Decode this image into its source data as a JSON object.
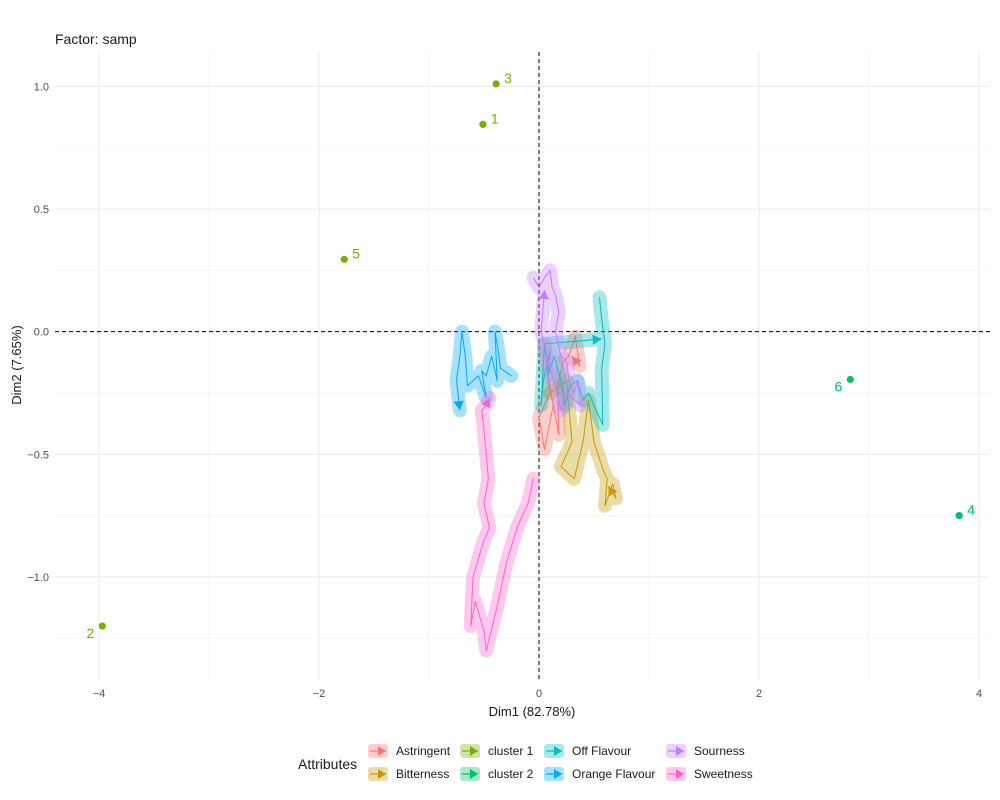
{
  "chart_data": {
    "type": "scatter",
    "title": "Factor: samp",
    "xlabel": "Dim1 (82.78%)",
    "ylabel": "Dim2 (7.65%)",
    "xlim": [
      -4.4,
      4.1
    ],
    "ylim": [
      -1.42,
      1.14
    ],
    "x_ticks": [
      -4,
      -2,
      0,
      2,
      4
    ],
    "y_ticks": [
      1.0,
      0.5,
      0.0,
      -0.5,
      -1.0
    ],
    "x_tick_labels": [
      "−4",
      "−2",
      "0",
      "2",
      "4"
    ],
    "y_tick_labels": [
      "1.0",
      "0.5",
      "0.0",
      "−0.5",
      "−1.0"
    ],
    "reference_lines": {
      "x": 0,
      "y": 0,
      "style": "dashed"
    },
    "grid": true,
    "points": [
      {
        "label": "1",
        "x": -0.51,
        "y": 0.845,
        "group": "cluster 1",
        "label_side": "right"
      },
      {
        "label": "2",
        "x": -3.97,
        "y": -1.2,
        "group": "cluster 1",
        "label_side": "left"
      },
      {
        "label": "3",
        "x": -0.39,
        "y": 1.01,
        "group": "cluster 1",
        "label_side": "right"
      },
      {
        "label": "4",
        "x": 3.82,
        "y": -0.75,
        "group": "cluster 2",
        "label_side": "right"
      },
      {
        "label": "5",
        "x": -1.77,
        "y": 0.295,
        "group": "cluster 1",
        "label_side": "right"
      },
      {
        "label": "6",
        "x": 2.83,
        "y": -0.195,
        "group": "cluster 2",
        "label_side": "left"
      }
    ],
    "trajectories": [
      {
        "name": "Astringent",
        "color": "#F8766D",
        "path": [
          [
            0.05,
            -0.05
          ],
          [
            0.1,
            -0.25
          ],
          [
            0.0,
            -0.35
          ],
          [
            0.05,
            -0.48
          ],
          [
            0.13,
            -0.3
          ],
          [
            0.08,
            -0.18
          ],
          [
            0.18,
            -0.42
          ],
          [
            0.17,
            -0.22
          ],
          [
            0.22,
            -0.12
          ],
          [
            0.27,
            -0.1
          ],
          [
            0.33,
            -0.02
          ],
          [
            0.37,
            -0.14
          ],
          [
            0.3,
            -0.1
          ]
        ]
      },
      {
        "name": "Bitterness",
        "color": "#C49A00",
        "path": [
          [
            0.1,
            -0.25
          ],
          [
            0.25,
            -0.2
          ],
          [
            0.3,
            -0.45
          ],
          [
            0.2,
            -0.55
          ],
          [
            0.32,
            -0.6
          ],
          [
            0.4,
            -0.45
          ],
          [
            0.45,
            -0.28
          ],
          [
            0.5,
            -0.45
          ],
          [
            0.58,
            -0.56
          ],
          [
            0.62,
            -0.6
          ],
          [
            0.6,
            -0.71
          ],
          [
            0.67,
            -0.62
          ],
          [
            0.7,
            -0.68
          ],
          [
            0.63,
            -0.63
          ]
        ]
      },
      {
        "name": "Off Flavour",
        "color": "#00BFC4",
        "path": [
          [
            0.55,
            0.14
          ],
          [
            0.57,
            0.05
          ],
          [
            0.6,
            -0.05
          ],
          [
            0.57,
            -0.15
          ],
          [
            0.58,
            -0.38
          ],
          [
            0.45,
            -0.25
          ],
          [
            0.4,
            -0.28
          ],
          [
            0.35,
            -0.2
          ],
          [
            0.28,
            -0.22
          ],
          [
            0.24,
            -0.3
          ],
          [
            0.2,
            -0.2
          ],
          [
            0.14,
            -0.1
          ],
          [
            0.08,
            -0.18
          ],
          [
            0.1,
            -0.08
          ],
          [
            0.04,
            -0.2
          ],
          [
            0.02,
            -0.3
          ],
          [
            0.05,
            -0.05
          ],
          [
            0.57,
            -0.03
          ]
        ]
      },
      {
        "name": "Orange Flavour",
        "color": "#00A9FF",
        "path": [
          [
            -0.25,
            -0.18
          ],
          [
            -0.35,
            -0.15
          ],
          [
            -0.38,
            -0.05
          ],
          [
            -0.4,
            0.0
          ],
          [
            -0.38,
            -0.2
          ],
          [
            -0.43,
            -0.1
          ],
          [
            -0.48,
            -0.18
          ],
          [
            -0.52,
            -0.16
          ],
          [
            -0.48,
            -0.27
          ],
          [
            -0.55,
            -0.18
          ],
          [
            -0.6,
            -0.2
          ],
          [
            -0.65,
            -0.22
          ],
          [
            -0.67,
            -0.1
          ],
          [
            -0.7,
            0.0
          ],
          [
            -0.72,
            -0.1
          ],
          [
            -0.75,
            -0.2
          ],
          [
            -0.72,
            -0.32
          ]
        ]
      },
      {
        "name": "Sourness",
        "color": "#C77CFF",
        "path": [
          [
            -0.05,
            0.22
          ],
          [
            0.0,
            0.18
          ],
          [
            0.05,
            0.22
          ],
          [
            0.1,
            0.25
          ],
          [
            0.12,
            0.18
          ],
          [
            0.15,
            0.15
          ],
          [
            0.18,
            0.08
          ],
          [
            0.15,
            0.0
          ],
          [
            0.2,
            -0.1
          ],
          [
            0.25,
            -0.12
          ],
          [
            0.28,
            -0.22
          ],
          [
            0.32,
            -0.25
          ],
          [
            0.35,
            -0.2
          ],
          [
            0.38,
            -0.3
          ],
          [
            0.25,
            -0.25
          ],
          [
            0.2,
            -0.32
          ],
          [
            0.02,
            0.0
          ],
          [
            0.05,
            0.17
          ]
        ]
      },
      {
        "name": "Sweetness",
        "color": "#FF61CC",
        "path": [
          [
            -0.05,
            -0.6
          ],
          [
            -0.1,
            -0.7
          ],
          [
            -0.2,
            -0.8
          ],
          [
            -0.3,
            -0.95
          ],
          [
            -0.38,
            -1.12
          ],
          [
            -0.48,
            -1.3
          ],
          [
            -0.5,
            -1.22
          ],
          [
            -0.58,
            -1.1
          ],
          [
            -0.62,
            -1.2
          ],
          [
            -0.6,
            -1.0
          ],
          [
            -0.5,
            -0.85
          ],
          [
            -0.45,
            -0.8
          ],
          [
            -0.5,
            -0.7
          ],
          [
            -0.46,
            -0.6
          ],
          [
            -0.48,
            -0.5
          ],
          [
            -0.5,
            -0.4
          ],
          [
            -0.52,
            -0.32
          ],
          [
            -0.48,
            -0.3
          ],
          [
            -0.45,
            -0.27
          ]
        ]
      }
    ],
    "legend": {
      "title": "Attributes",
      "position": "bottom",
      "items": [
        {
          "name": "Astringent",
          "color": "#F8766D"
        },
        {
          "name": "Bitterness",
          "color": "#C49A00"
        },
        {
          "name": "cluster 1",
          "color": "#7CAE00"
        },
        {
          "name": "cluster 2",
          "color": "#00BE67"
        },
        {
          "name": "Off Flavour",
          "color": "#00BFC4"
        },
        {
          "name": "Orange Flavour",
          "color": "#00A9FF"
        },
        {
          "name": "Sourness",
          "color": "#C77CFF"
        },
        {
          "name": "Sweetness",
          "color": "#FF61CC"
        }
      ]
    }
  }
}
